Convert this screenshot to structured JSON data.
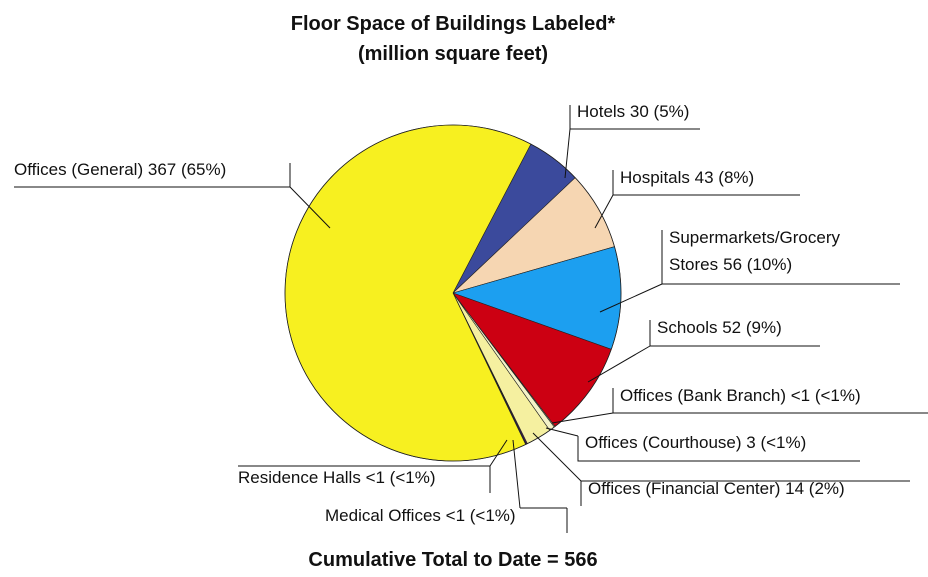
{
  "chart_data": {
    "type": "pie",
    "title": "Floor Space of Buildings Labeled*",
    "subtitle": "(million square feet)",
    "annotation": "Cumulative Total to Date = 566",
    "categories": [
      "Hotels",
      "Hospitals",
      "Supermarkets/Grocery Stores",
      "Schools",
      "Offices (Bank Branch)",
      "Offices (Courthouse)",
      "Offices (Financial Center)",
      "Medical Offices",
      "Residence Halls",
      "Offices (General)"
    ],
    "values": [
      30,
      43,
      56,
      52,
      0.5,
      3,
      14,
      0.5,
      0.5,
      367
    ],
    "value_labels": [
      "30 (5%)",
      "43 (8%)",
      "56 (10%)",
      "52 (9%)",
      "<1 (<1%)",
      "3 (<1%)",
      "14 (2%)",
      "<1 (<1%)",
      "<1 (<1%)",
      "367 (65%)"
    ],
    "colors": [
      "#3b4a9c",
      "#f6d6b2",
      "#1c9ff0",
      "#cc0012",
      "#e4efb0",
      "#f4f3c8",
      "#f5f0a0",
      "#7b1a8c",
      "#24237e",
      "#f7f020"
    ]
  }
}
